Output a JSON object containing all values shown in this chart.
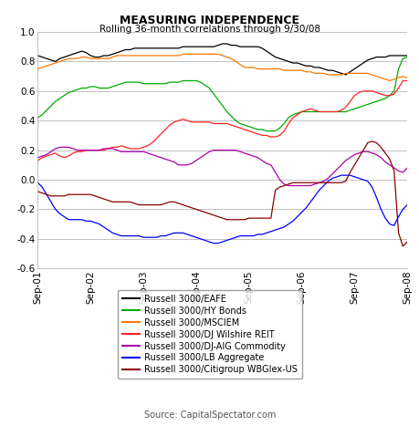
{
  "title": "MEASURING INDEPENDENCE",
  "subtitle": "Rolling 36-month correlations through 9/30/08",
  "source": "Source: CapitalSpectator.com",
  "xlim_start": 0,
  "xlim_end": 84,
  "ylim": [
    -0.6,
    1.0
  ],
  "yticks": [
    -0.6,
    -0.4,
    -0.2,
    0.0,
    0.2,
    0.4,
    0.6,
    0.8,
    1.0
  ],
  "xtick_labels": [
    "Sep-01",
    "Sep-02",
    "Sep-03",
    "Sep-04",
    "Sep-05",
    "Sep-06",
    "Sep-07",
    "Sep-08"
  ],
  "xtick_positions": [
    0,
    12,
    24,
    36,
    48,
    60,
    72,
    84
  ],
  "series": {
    "EAFE": {
      "color": "#000000",
      "label": "Russell 3000/EAFE",
      "values": [
        0.84,
        0.83,
        0.82,
        0.81,
        0.8,
        0.82,
        0.83,
        0.84,
        0.85,
        0.86,
        0.87,
        0.86,
        0.84,
        0.83,
        0.83,
        0.84,
        0.84,
        0.85,
        0.86,
        0.87,
        0.88,
        0.88,
        0.89,
        0.89,
        0.89,
        0.89,
        0.89,
        0.89,
        0.89,
        0.89,
        0.89,
        0.89,
        0.89,
        0.9,
        0.9,
        0.9,
        0.9,
        0.9,
        0.9,
        0.9,
        0.9,
        0.91,
        0.92,
        0.92,
        0.91,
        0.91,
        0.9,
        0.9,
        0.9,
        0.9,
        0.9,
        0.89,
        0.87,
        0.85,
        0.83,
        0.82,
        0.81,
        0.8,
        0.79,
        0.79,
        0.78,
        0.77,
        0.77,
        0.76,
        0.76,
        0.75,
        0.74,
        0.74,
        0.73,
        0.72,
        0.71,
        0.73,
        0.75,
        0.77,
        0.79,
        0.81,
        0.82,
        0.83,
        0.83,
        0.83,
        0.84,
        0.84,
        0.84,
        0.84,
        0.84
      ]
    },
    "HYBonds": {
      "color": "#00aa00",
      "label": "Russell 3000/HY Bonds",
      "values": [
        0.42,
        0.44,
        0.47,
        0.5,
        0.53,
        0.55,
        0.57,
        0.59,
        0.6,
        0.61,
        0.62,
        0.62,
        0.63,
        0.63,
        0.62,
        0.62,
        0.62,
        0.63,
        0.64,
        0.65,
        0.66,
        0.66,
        0.66,
        0.66,
        0.65,
        0.65,
        0.65,
        0.65,
        0.65,
        0.65,
        0.66,
        0.66,
        0.66,
        0.67,
        0.67,
        0.67,
        0.67,
        0.66,
        0.64,
        0.62,
        0.58,
        0.54,
        0.5,
        0.46,
        0.43,
        0.4,
        0.38,
        0.37,
        0.36,
        0.35,
        0.34,
        0.34,
        0.33,
        0.33,
        0.33,
        0.35,
        0.38,
        0.42,
        0.44,
        0.45,
        0.46,
        0.46,
        0.46,
        0.46,
        0.46,
        0.46,
        0.46,
        0.46,
        0.46,
        0.46,
        0.46,
        0.47,
        0.48,
        0.49,
        0.5,
        0.51,
        0.52,
        0.53,
        0.54,
        0.55,
        0.57,
        0.6,
        0.75,
        0.82,
        0.83
      ]
    },
    "MSCIEM": {
      "color": "#ff7700",
      "label": "Russell 3000/MSCIEM",
      "values": [
        0.75,
        0.76,
        0.77,
        0.78,
        0.79,
        0.8,
        0.81,
        0.82,
        0.82,
        0.82,
        0.83,
        0.83,
        0.82,
        0.82,
        0.82,
        0.82,
        0.82,
        0.83,
        0.84,
        0.84,
        0.84,
        0.84,
        0.84,
        0.84,
        0.84,
        0.84,
        0.84,
        0.84,
        0.84,
        0.84,
        0.84,
        0.84,
        0.84,
        0.85,
        0.85,
        0.85,
        0.85,
        0.85,
        0.85,
        0.85,
        0.85,
        0.85,
        0.84,
        0.83,
        0.82,
        0.8,
        0.78,
        0.76,
        0.76,
        0.76,
        0.75,
        0.75,
        0.75,
        0.75,
        0.75,
        0.75,
        0.74,
        0.74,
        0.74,
        0.74,
        0.74,
        0.73,
        0.73,
        0.72,
        0.72,
        0.72,
        0.71,
        0.71,
        0.71,
        0.71,
        0.72,
        0.72,
        0.72,
        0.72,
        0.72,
        0.72,
        0.71,
        0.7,
        0.69,
        0.68,
        0.67,
        0.68,
        0.69,
        0.7,
        0.69
      ]
    },
    "REIT": {
      "color": "#ff2222",
      "label": "Russell 3000/DJ Wilshire REIT",
      "values": [
        0.13,
        0.15,
        0.16,
        0.17,
        0.18,
        0.16,
        0.15,
        0.16,
        0.18,
        0.19,
        0.19,
        0.2,
        0.2,
        0.2,
        0.2,
        0.2,
        0.21,
        0.22,
        0.22,
        0.23,
        0.22,
        0.21,
        0.21,
        0.21,
        0.22,
        0.23,
        0.25,
        0.28,
        0.31,
        0.34,
        0.37,
        0.39,
        0.4,
        0.41,
        0.4,
        0.39,
        0.39,
        0.39,
        0.39,
        0.39,
        0.38,
        0.38,
        0.38,
        0.38,
        0.37,
        0.36,
        0.35,
        0.34,
        0.33,
        0.32,
        0.31,
        0.3,
        0.3,
        0.29,
        0.29,
        0.3,
        0.33,
        0.38,
        0.42,
        0.44,
        0.46,
        0.47,
        0.48,
        0.47,
        0.46,
        0.46,
        0.46,
        0.46,
        0.46,
        0.47,
        0.49,
        0.53,
        0.57,
        0.59,
        0.6,
        0.6,
        0.6,
        0.59,
        0.58,
        0.57,
        0.57,
        0.58,
        0.62,
        0.67,
        0.67
      ]
    },
    "Commodity": {
      "color": "#aa00aa",
      "label": "Russell 3000/DJ-AIG Commodity",
      "values": [
        0.15,
        0.16,
        0.17,
        0.19,
        0.21,
        0.22,
        0.22,
        0.22,
        0.21,
        0.2,
        0.2,
        0.2,
        0.2,
        0.2,
        0.2,
        0.21,
        0.21,
        0.21,
        0.2,
        0.19,
        0.19,
        0.19,
        0.19,
        0.19,
        0.19,
        0.18,
        0.17,
        0.16,
        0.15,
        0.14,
        0.13,
        0.12,
        0.1,
        0.1,
        0.1,
        0.11,
        0.13,
        0.15,
        0.17,
        0.19,
        0.2,
        0.2,
        0.2,
        0.2,
        0.2,
        0.2,
        0.19,
        0.18,
        0.17,
        0.16,
        0.15,
        0.13,
        0.11,
        0.1,
        0.05,
        0.0,
        -0.03,
        -0.04,
        -0.04,
        -0.04,
        -0.04,
        -0.04,
        -0.04,
        -0.03,
        -0.02,
        -0.01,
        0.01,
        0.04,
        0.07,
        0.1,
        0.13,
        0.15,
        0.17,
        0.18,
        0.19,
        0.19,
        0.18,
        0.17,
        0.15,
        0.12,
        0.1,
        0.08,
        0.06,
        0.05,
        0.08
      ]
    },
    "LBAggregate": {
      "color": "#0000ff",
      "label": "Russell 3000/LB Aggregate",
      "values": [
        -0.02,
        -0.05,
        -0.1,
        -0.15,
        -0.2,
        -0.23,
        -0.25,
        -0.27,
        -0.27,
        -0.27,
        -0.27,
        -0.28,
        -0.28,
        -0.29,
        -0.3,
        -0.32,
        -0.34,
        -0.36,
        -0.37,
        -0.38,
        -0.38,
        -0.38,
        -0.38,
        -0.38,
        -0.39,
        -0.39,
        -0.39,
        -0.39,
        -0.38,
        -0.38,
        -0.37,
        -0.36,
        -0.36,
        -0.36,
        -0.37,
        -0.38,
        -0.39,
        -0.4,
        -0.41,
        -0.42,
        -0.43,
        -0.43,
        -0.42,
        -0.41,
        -0.4,
        -0.39,
        -0.38,
        -0.38,
        -0.38,
        -0.38,
        -0.37,
        -0.37,
        -0.36,
        -0.35,
        -0.34,
        -0.33,
        -0.32,
        -0.3,
        -0.28,
        -0.25,
        -0.22,
        -0.19,
        -0.15,
        -0.11,
        -0.07,
        -0.04,
        -0.01,
        0.01,
        0.02,
        0.03,
        0.03,
        0.03,
        0.02,
        0.01,
        0.0,
        -0.01,
        -0.05,
        -0.12,
        -0.2,
        -0.26,
        -0.3,
        -0.31,
        -0.25,
        -0.2,
        -0.17
      ]
    },
    "Citigroup": {
      "color": "#8B0000",
      "label": "Russell 3000/Citigroup WBGIex-US",
      "values": [
        -0.08,
        -0.09,
        -0.1,
        -0.11,
        -0.11,
        -0.11,
        -0.11,
        -0.1,
        -0.1,
        -0.1,
        -0.1,
        -0.1,
        -0.1,
        -0.11,
        -0.12,
        -0.13,
        -0.14,
        -0.15,
        -0.15,
        -0.15,
        -0.15,
        -0.15,
        -0.16,
        -0.17,
        -0.17,
        -0.17,
        -0.17,
        -0.17,
        -0.17,
        -0.16,
        -0.15,
        -0.15,
        -0.16,
        -0.17,
        -0.18,
        -0.19,
        -0.2,
        -0.21,
        -0.22,
        -0.23,
        -0.24,
        -0.25,
        -0.26,
        -0.27,
        -0.27,
        -0.27,
        -0.27,
        -0.27,
        -0.26,
        -0.26,
        -0.26,
        -0.26,
        -0.26,
        -0.26,
        -0.07,
        -0.05,
        -0.04,
        -0.03,
        -0.02,
        -0.02,
        -0.02,
        -0.02,
        -0.02,
        -0.02,
        -0.02,
        -0.02,
        -0.02,
        -0.02,
        -0.02,
        -0.02,
        -0.01,
        0.05,
        0.1,
        0.15,
        0.2,
        0.25,
        0.26,
        0.25,
        0.22,
        0.18,
        0.14,
        0.06,
        -0.36,
        -0.45,
        -0.42
      ]
    }
  },
  "legend_order": [
    "EAFE",
    "HYBonds",
    "MSCIEM",
    "REIT",
    "Commodity",
    "LBAggregate",
    "Citigroup"
  ],
  "bg_color": "#ffffff",
  "plot_bg_color": "#ffffff"
}
